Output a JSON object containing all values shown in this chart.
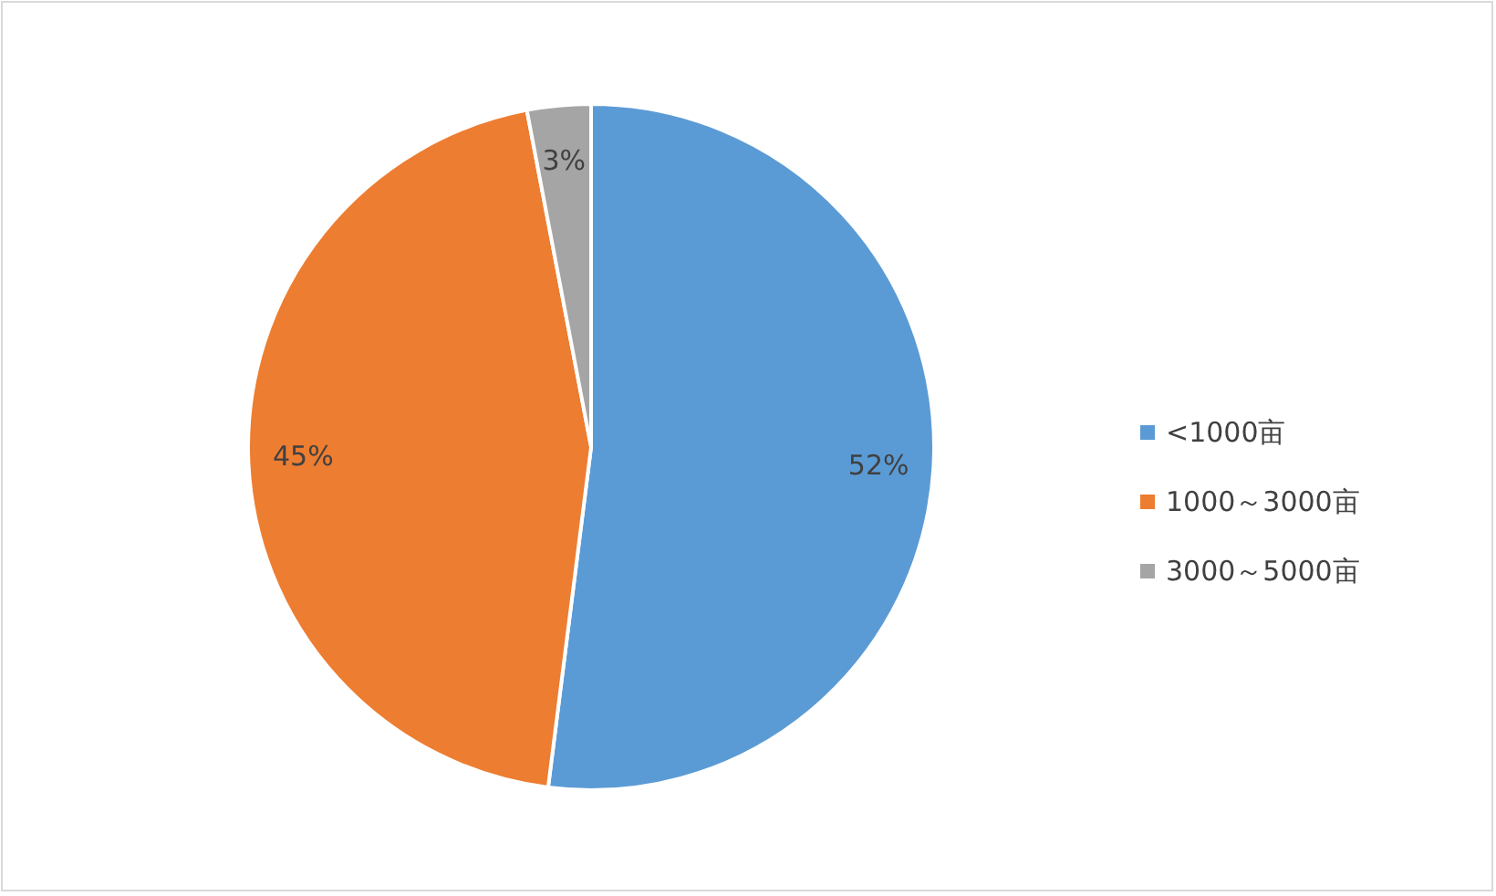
{
  "chart_data": {
    "type": "pie",
    "categories": [
      "<1000亩",
      "1000～3000亩",
      "3000～5000亩"
    ],
    "values": [
      52,
      45,
      3
    ],
    "colors": [
      "#5b9bd5",
      "#ed7d31",
      "#a5a5a5"
    ],
    "value_labels": [
      "52%",
      "45%",
      "3%"
    ],
    "legend": "right"
  }
}
